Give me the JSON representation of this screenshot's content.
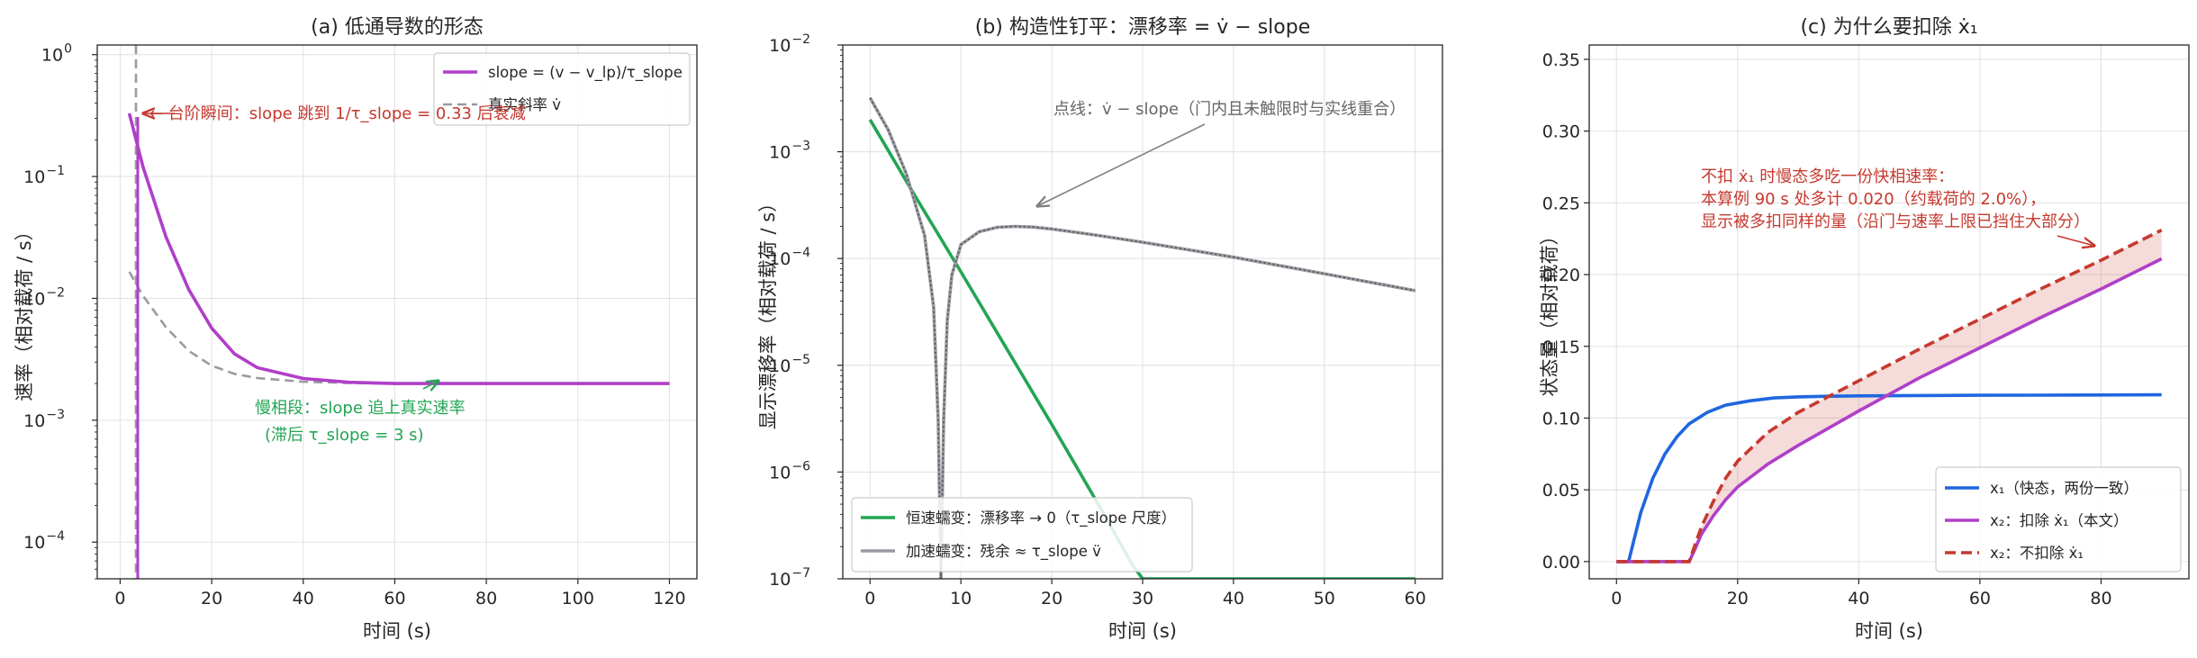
{
  "figure": {
    "panels": [
      {
        "id": "a",
        "title": "(a) 低通导数的形态",
        "xlabel": "时间 (s)",
        "ylabel": "速率（相对载荷 / s）",
        "legend": [
          "slope = (v − v_lp)/τ_slope",
          "真实斜率 v̇"
        ],
        "annotations": [
          "← 台阶瞬间：slope 跳到 1/τ_slope = 0.33 后衰减",
          "慢相段：slope 追上真实速率",
          "(滞后 τ_slope = 3 s)"
        ]
      },
      {
        "id": "b",
        "title": "(b) 构造性钉平：漂移率 = v̇ − slope",
        "xlabel": "时间 (s)",
        "ylabel": "显示漂移率（相对载荷 / s）",
        "legend": [
          "恒速蠕变：漂移率 → 0（τ_slope 尺度）",
          "加速蠕变：残余 ≈ τ_slope v̈"
        ],
        "annotations": [
          "点线：v̇ − slope（门内且未触限时与实线重合）"
        ]
      },
      {
        "id": "c",
        "title": "(c) 为什么要扣除 ẋ₁",
        "xlabel": "时间 (s)",
        "ylabel": "状态量（相对载荷）",
        "legend": [
          "x₁（快态，两份一致）",
          "x₂：扣除 ẋ₁（本文）",
          "x₂：不扣除 ẋ₁"
        ],
        "annotations": [
          "不扣 ẋ₁ 时慢态多吃一份快相速率：",
          "本算例 90 s 处多计 0.020（约载荷的 2.0%），",
          "显示被多扣同样的量（沿门与速率上限已挡住大部分）"
        ]
      }
    ]
  },
  "chart_data": [
    {
      "type": "line",
      "title": "(a) 低通导数的形态",
      "xlabel": "时间 (s)",
      "ylabel": "速率（相对载荷 / s）",
      "xlim": [
        -5,
        126
      ],
      "ylim": [
        5e-05,
        1.2
      ],
      "yscale": "log",
      "xticks": [
        0,
        20,
        40,
        60,
        80,
        100,
        120
      ],
      "yticks": [
        "10^-4",
        "10^-3",
        "10^-2",
        "10^-1",
        "10^0"
      ],
      "grid": true,
      "legend_position": "top-right",
      "series": [
        {
          "name": "slope = (v − v_lp)/τ_slope",
          "color": "#b03fc9",
          "style": "solid",
          "x": [
            2,
            5,
            10,
            15,
            20,
            25,
            30,
            40,
            50,
            60,
            70,
            80,
            100,
            120
          ],
          "y": [
            0.33,
            0.12,
            0.032,
            0.0118,
            0.0057,
            0.0035,
            0.0027,
            0.0022,
            0.00205,
            0.002,
            0.002,
            0.002,
            0.002,
            0.002
          ]
        },
        {
          "name": "真实斜率 v̇",
          "color": "#9a9ba1",
          "style": "dashed",
          "x": [
            2,
            5,
            10,
            15,
            20,
            25,
            30,
            40,
            50,
            60,
            70,
            80,
            100,
            120
          ],
          "y": [
            0.0165,
            0.0105,
            0.0058,
            0.0037,
            0.0028,
            0.0024,
            0.00222,
            0.00207,
            0.00202,
            0.002,
            0.002,
            0.002,
            0.002,
            0.002
          ]
        }
      ]
    },
    {
      "type": "line",
      "title": "(b) 构造性钉平：漂移率 = v̇ − slope",
      "xlabel": "时间 (s)",
      "ylabel": "显示漂移率（相对载荷 / s）",
      "xlim": [
        -3,
        63
      ],
      "ylim": [
        1e-07,
        0.01
      ],
      "yscale": "log",
      "xticks": [
        0,
        10,
        20,
        30,
        40,
        50,
        60
      ],
      "yticks": [
        "10^-7",
        "10^-6",
        "10^-5",
        "10^-4",
        "10^-3",
        "10^-2"
      ],
      "grid": true,
      "legend_position": "bottom-left",
      "series": [
        {
          "name": "恒速蠕变：漂移率 → 0（τ_slope 尺度）",
          "color": "#22a553",
          "style": "solid",
          "x": [
            0,
            5,
            10,
            15,
            20,
            25,
            29,
            30,
            40,
            50,
            60
          ],
          "y": [
            0.002,
            0.00038,
            7.5e-05,
            1.45e-05,
            2.8e-06,
            5.2e-07,
            1.3e-07,
            1e-07,
            1e-07,
            1e-07,
            1e-07
          ]
        },
        {
          "name": "加速蠕变：残余 ≈ τ_slope v̈",
          "color": "#9a9ba1",
          "style": "solid",
          "x": [
            0,
            2,
            4,
            6,
            7,
            7.5,
            7.8,
            8.1,
            8.5,
            9,
            10,
            12,
            14,
            16,
            18,
            20,
            25,
            30,
            40,
            50,
            60
          ],
          "y": [
            0.0032,
            0.0016,
            0.00062,
            0.000165,
            3.5e-05,
            3e-06,
            1e-07,
            3e-06,
            2.6e-05,
            7e-05,
            0.000135,
            0.000178,
            0.000196,
            0.0002,
            0.000197,
            0.000189,
            0.000165,
            0.000142,
            0.000103,
            7.2e-05,
            5e-05
          ]
        }
      ]
    },
    {
      "type": "line",
      "title": "(c) 为什么要扣除 ẋ₁",
      "xlabel": "时间 (s)",
      "ylabel": "状态量（相对载荷）",
      "xlim": [
        -4.5,
        94.5
      ],
      "ylim": [
        -0.012,
        0.36
      ],
      "xticks": [
        0,
        20,
        40,
        60,
        80
      ],
      "yticks": [
        0.0,
        0.05,
        0.1,
        0.15,
        0.2,
        0.25,
        0.3,
        0.35
      ],
      "grid": true,
      "legend_position": "bottom-right",
      "series": [
        {
          "name": "x₁（快态，两份一致）",
          "color": "#1f66e0",
          "style": "solid",
          "x": [
            0,
            2,
            4,
            6,
            8,
            10,
            12,
            15,
            18,
            22,
            26,
            30,
            35,
            40,
            50,
            60,
            70,
            80,
            90
          ],
          "y": [
            0,
            0,
            0.034,
            0.058,
            0.075,
            0.087,
            0.096,
            0.104,
            0.109,
            0.112,
            0.114,
            0.1148,
            0.1152,
            0.1155,
            0.1157,
            0.1159,
            0.116,
            0.1161,
            0.1162
          ]
        },
        {
          "name": "x₂：扣除 ẋ₁（本文）",
          "color": "#b03fc9",
          "style": "solid",
          "x": [
            0,
            12,
            13,
            14,
            16,
            18,
            20,
            25,
            30,
            40,
            50,
            60,
            70,
            80,
            90
          ],
          "y": [
            0,
            0,
            0.009,
            0.019,
            0.032,
            0.043,
            0.052,
            0.068,
            0.081,
            0.105,
            0.128,
            0.149,
            0.17,
            0.19,
            0.211
          ]
        },
        {
          "name": "x₂：不扣除 ẋ₁",
          "color": "#c6392f",
          "style": "dashed",
          "x": [
            0,
            12,
            13,
            14,
            16,
            18,
            20,
            25,
            30,
            40,
            50,
            60,
            70,
            80,
            90
          ],
          "y": [
            0,
            0,
            0.012,
            0.024,
            0.042,
            0.058,
            0.07,
            0.09,
            0.104,
            0.126,
            0.148,
            0.169,
            0.19,
            0.21,
            0.231
          ]
        }
      ]
    }
  ]
}
